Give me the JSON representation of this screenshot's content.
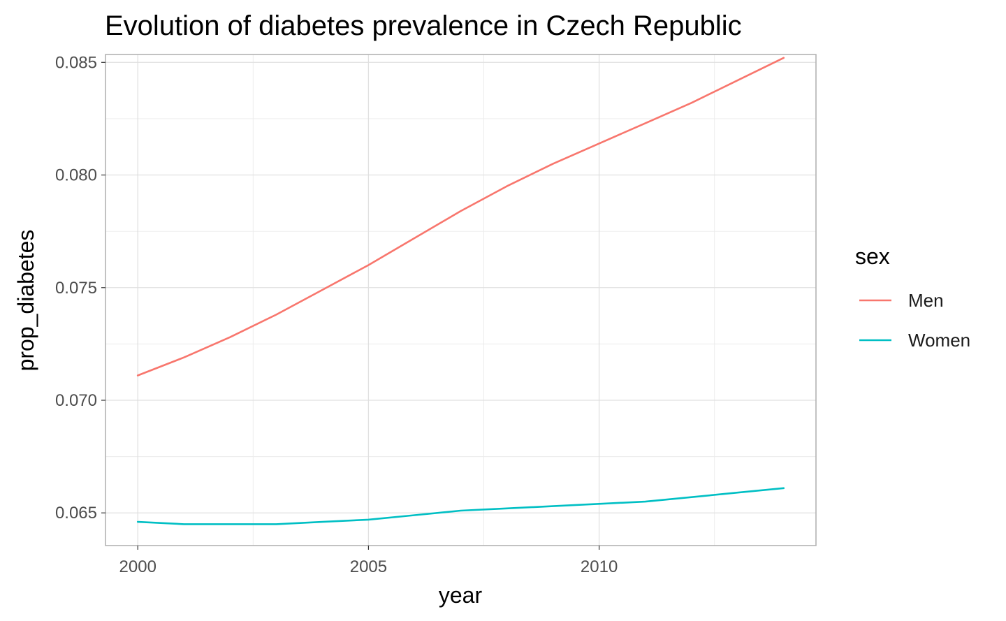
{
  "chart_data": {
    "type": "line",
    "title": "Evolution of diabetes prevalence in Czech Republic",
    "xlabel": "year",
    "ylabel": "prop_diabetes",
    "xlim": [
      1999.3,
      2014.7
    ],
    "ylim": [
      0.06355,
      0.08535
    ],
    "x_ticks": [
      2000,
      2005,
      2010
    ],
    "x_tick_labels": [
      "2000",
      "2005",
      "2010"
    ],
    "y_ticks": [
      0.065,
      0.07,
      0.075,
      0.08,
      0.085
    ],
    "y_tick_labels": [
      "0.065",
      "0.070",
      "0.075",
      "0.080",
      "0.085"
    ],
    "x_minor_ticks": [
      2002.5,
      2007.5,
      2012.5
    ],
    "y_minor_ticks": [
      0.0675,
      0.0725,
      0.0775,
      0.0825
    ],
    "grid": true,
    "legend_position": "right",
    "legend_title": "sex",
    "x": [
      2000,
      2001,
      2002,
      2003,
      2004,
      2005,
      2006,
      2007,
      2008,
      2009,
      2010,
      2011,
      2012,
      2013,
      2014
    ],
    "series": [
      {
        "name": "Men",
        "color": "#F8766D",
        "values": [
          0.0711,
          0.0719,
          0.0728,
          0.0738,
          0.0749,
          0.076,
          0.0772,
          0.0784,
          0.0795,
          0.0805,
          0.0814,
          0.0823,
          0.0832,
          0.0842,
          0.0852
        ]
      },
      {
        "name": "Women",
        "color": "#00BFC4",
        "values": [
          0.0646,
          0.0645,
          0.0645,
          0.0645,
          0.0646,
          0.0647,
          0.0649,
          0.0651,
          0.0652,
          0.0653,
          0.0654,
          0.0655,
          0.0657,
          0.0659,
          0.0661
        ]
      }
    ]
  }
}
